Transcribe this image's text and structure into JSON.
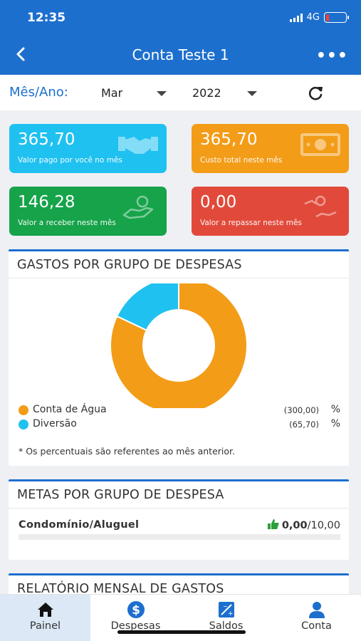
{
  "status": {
    "time": "12:35",
    "network": "4G"
  },
  "nav": {
    "title": "Conta Teste 1"
  },
  "filter": {
    "label": "Mês/Ano:",
    "month": "Mar",
    "year": "2022"
  },
  "cards": [
    {
      "value": "365,70",
      "label": "Valor pago por você no mês",
      "color": "#1fc1f0",
      "icon": "handshake-icon"
    },
    {
      "value": "365,70",
      "label": "Custo total neste mês",
      "color": "#f39c17",
      "icon": "cash-icon"
    },
    {
      "value": "146,28",
      "label": "Valor a receber neste mês",
      "color": "#16a34a",
      "icon": "receive-money-icon"
    },
    {
      "value": "0,00",
      "label": "Valor a repassar neste mês",
      "color": "#e14a3b",
      "icon": "transfer-money-icon"
    }
  ],
  "gastos": {
    "title": "GASTOS POR GRUPO DE DESPESAS",
    "legend": [
      {
        "name": "Conta de Água",
        "value": "(300,00)",
        "pct": "%",
        "color": "#f39c17"
      },
      {
        "name": "Diversão",
        "value": "(65,70)",
        "pct": "%",
        "color": "#1fc1f0"
      }
    ],
    "note": "* Os percentuais são referentes ao mês anterior."
  },
  "chart_data": {
    "type": "pie",
    "categories": [
      "Conta de Água",
      "Diversão"
    ],
    "values": [
      300.0,
      65.7
    ],
    "colors": [
      "#f39c17",
      "#1fc1f0"
    ],
    "title": "GASTOS POR GRUPO DE DESPESAS",
    "legend": "bottom"
  },
  "metas": {
    "title": "METAS POR GRUPO DE DESPESA",
    "item": {
      "name": "Condomínio/Aluguel",
      "value": "0,00",
      "target": "/10,00",
      "progress": 0
    }
  },
  "relatorio": {
    "title": "RELATÓRIO MENSAL DE GASTOS"
  },
  "tabs": [
    {
      "label": "Painel",
      "icon": "home-icon",
      "active": true
    },
    {
      "label": "Despesas",
      "icon": "dollar-icon",
      "active": false
    },
    {
      "label": "Saldos",
      "icon": "balance-icon",
      "active": false
    },
    {
      "label": "Conta",
      "icon": "user-icon",
      "active": false
    }
  ]
}
